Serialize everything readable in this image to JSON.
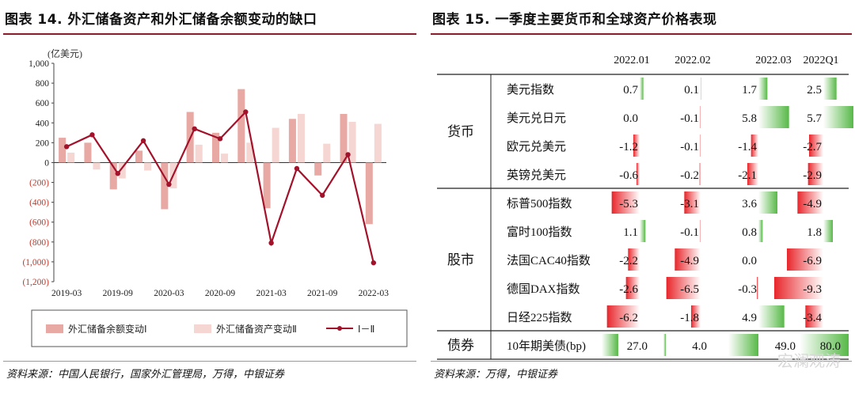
{
  "left": {
    "figure_title": "图表 14. 外汇储备资产和外汇储备余额变动的缺口",
    "source": "资料来源：中国人民银行，国家外汇管理局，万得，中银证券",
    "unit_label": "(亿美元)",
    "colors": {
      "bar1": "#e8a9a4",
      "bar2": "#f6d6d2",
      "line": "#a3122b"
    }
  },
  "right": {
    "figure_title": "图表 15. 一季度主要货币和全球资产价格表现",
    "source": "资料来源：万得，中银证券",
    "colors": {
      "pos_gradient_end": "#4caf3a",
      "neg_gradient_end": "#e53935"
    }
  },
  "watermark": "宏澜观涛",
  "chart_data": [
    {
      "type": "bar",
      "title": "",
      "xlabel": "",
      "ylabel": "(亿美元)",
      "ylim": [
        -1200,
        1000
      ],
      "y_ticks": [
        "1,000",
        "800",
        "600",
        "400",
        "200",
        "0",
        "(200)",
        "(400)",
        "(600)",
        "(800)",
        "(1,000)",
        "(1,200)"
      ],
      "x_tick_labels": [
        "2019-03",
        "2019-09",
        "2020-03",
        "2020-09",
        "2021-03",
        "2021-09",
        "2022-03"
      ],
      "categories": [
        "2019-03",
        "2019-06",
        "2019-09",
        "2019-12",
        "2020-03",
        "2020-06",
        "2020-09",
        "2020-12",
        "2021-03",
        "2021-06",
        "2021-09",
        "2021-12",
        "2022-03"
      ],
      "legend_position": "bottom",
      "grid": false,
      "series": [
        {
          "name": "外汇储备余额变动Ⅰ",
          "kind": "bar",
          "values": [
            250,
            200,
            -270,
            120,
            -470,
            510,
            300,
            740,
            -460,
            440,
            -130,
            490,
            -620
          ]
        },
        {
          "name": "外汇储备资产变动Ⅱ",
          "kind": "bar",
          "values": [
            100,
            -70,
            -160,
            -80,
            -260,
            180,
            90,
            200,
            350,
            490,
            190,
            410,
            390
          ]
        },
        {
          "name": "Ⅰ－Ⅱ",
          "kind": "line",
          "values": [
            160,
            280,
            -110,
            220,
            -220,
            340,
            240,
            510,
            -810,
            -60,
            -330,
            80,
            -1010
          ]
        }
      ]
    },
    {
      "type": "table",
      "title": "",
      "columns": [
        "2022.01",
        "2022.02",
        "2022.03",
        "2022Q1"
      ],
      "groups": [
        {
          "name": "货币",
          "rows": [
            {
              "label": "美元指数",
              "values": [
                "0.7",
                "0.1",
                "1.7",
                "2.5"
              ]
            },
            {
              "label": "美元兑日元",
              "values": [
                "0.0",
                "-0.1",
                "5.8",
                "5.7"
              ]
            },
            {
              "label": "欧元兑美元",
              "values": [
                "-1.2",
                "-0.1",
                "-1.4",
                "-2.7"
              ]
            },
            {
              "label": "英镑兑美元",
              "values": [
                "-0.6",
                "-0.2",
                "-2.1",
                "-2.9"
              ]
            }
          ]
        },
        {
          "name": "股市",
          "rows": [
            {
              "label": "标普500指数",
              "values": [
                "-5.3",
                "-3.1",
                "3.6",
                "-4.9"
              ]
            },
            {
              "label": "富时100指数",
              "values": [
                "1.1",
                "-0.1",
                "0.8",
                "1.8"
              ]
            },
            {
              "label": "法国CAC40指数",
              "values": [
                "-2.2",
                "-4.9",
                "0.0",
                "-6.9"
              ]
            },
            {
              "label": "德国DAX指数",
              "values": [
                "-2.6",
                "-6.5",
                "-0.3",
                "-9.3"
              ]
            },
            {
              "label": "日经225指数",
              "values": [
                "-6.2",
                "-1.8",
                "4.9",
                "-3.4"
              ]
            }
          ]
        },
        {
          "name": "债券",
          "rows": [
            {
              "label": "10年期美债(bp)",
              "values": [
                "27.0",
                "4.0",
                "49.0",
                "80.0"
              ]
            }
          ]
        }
      ]
    }
  ]
}
